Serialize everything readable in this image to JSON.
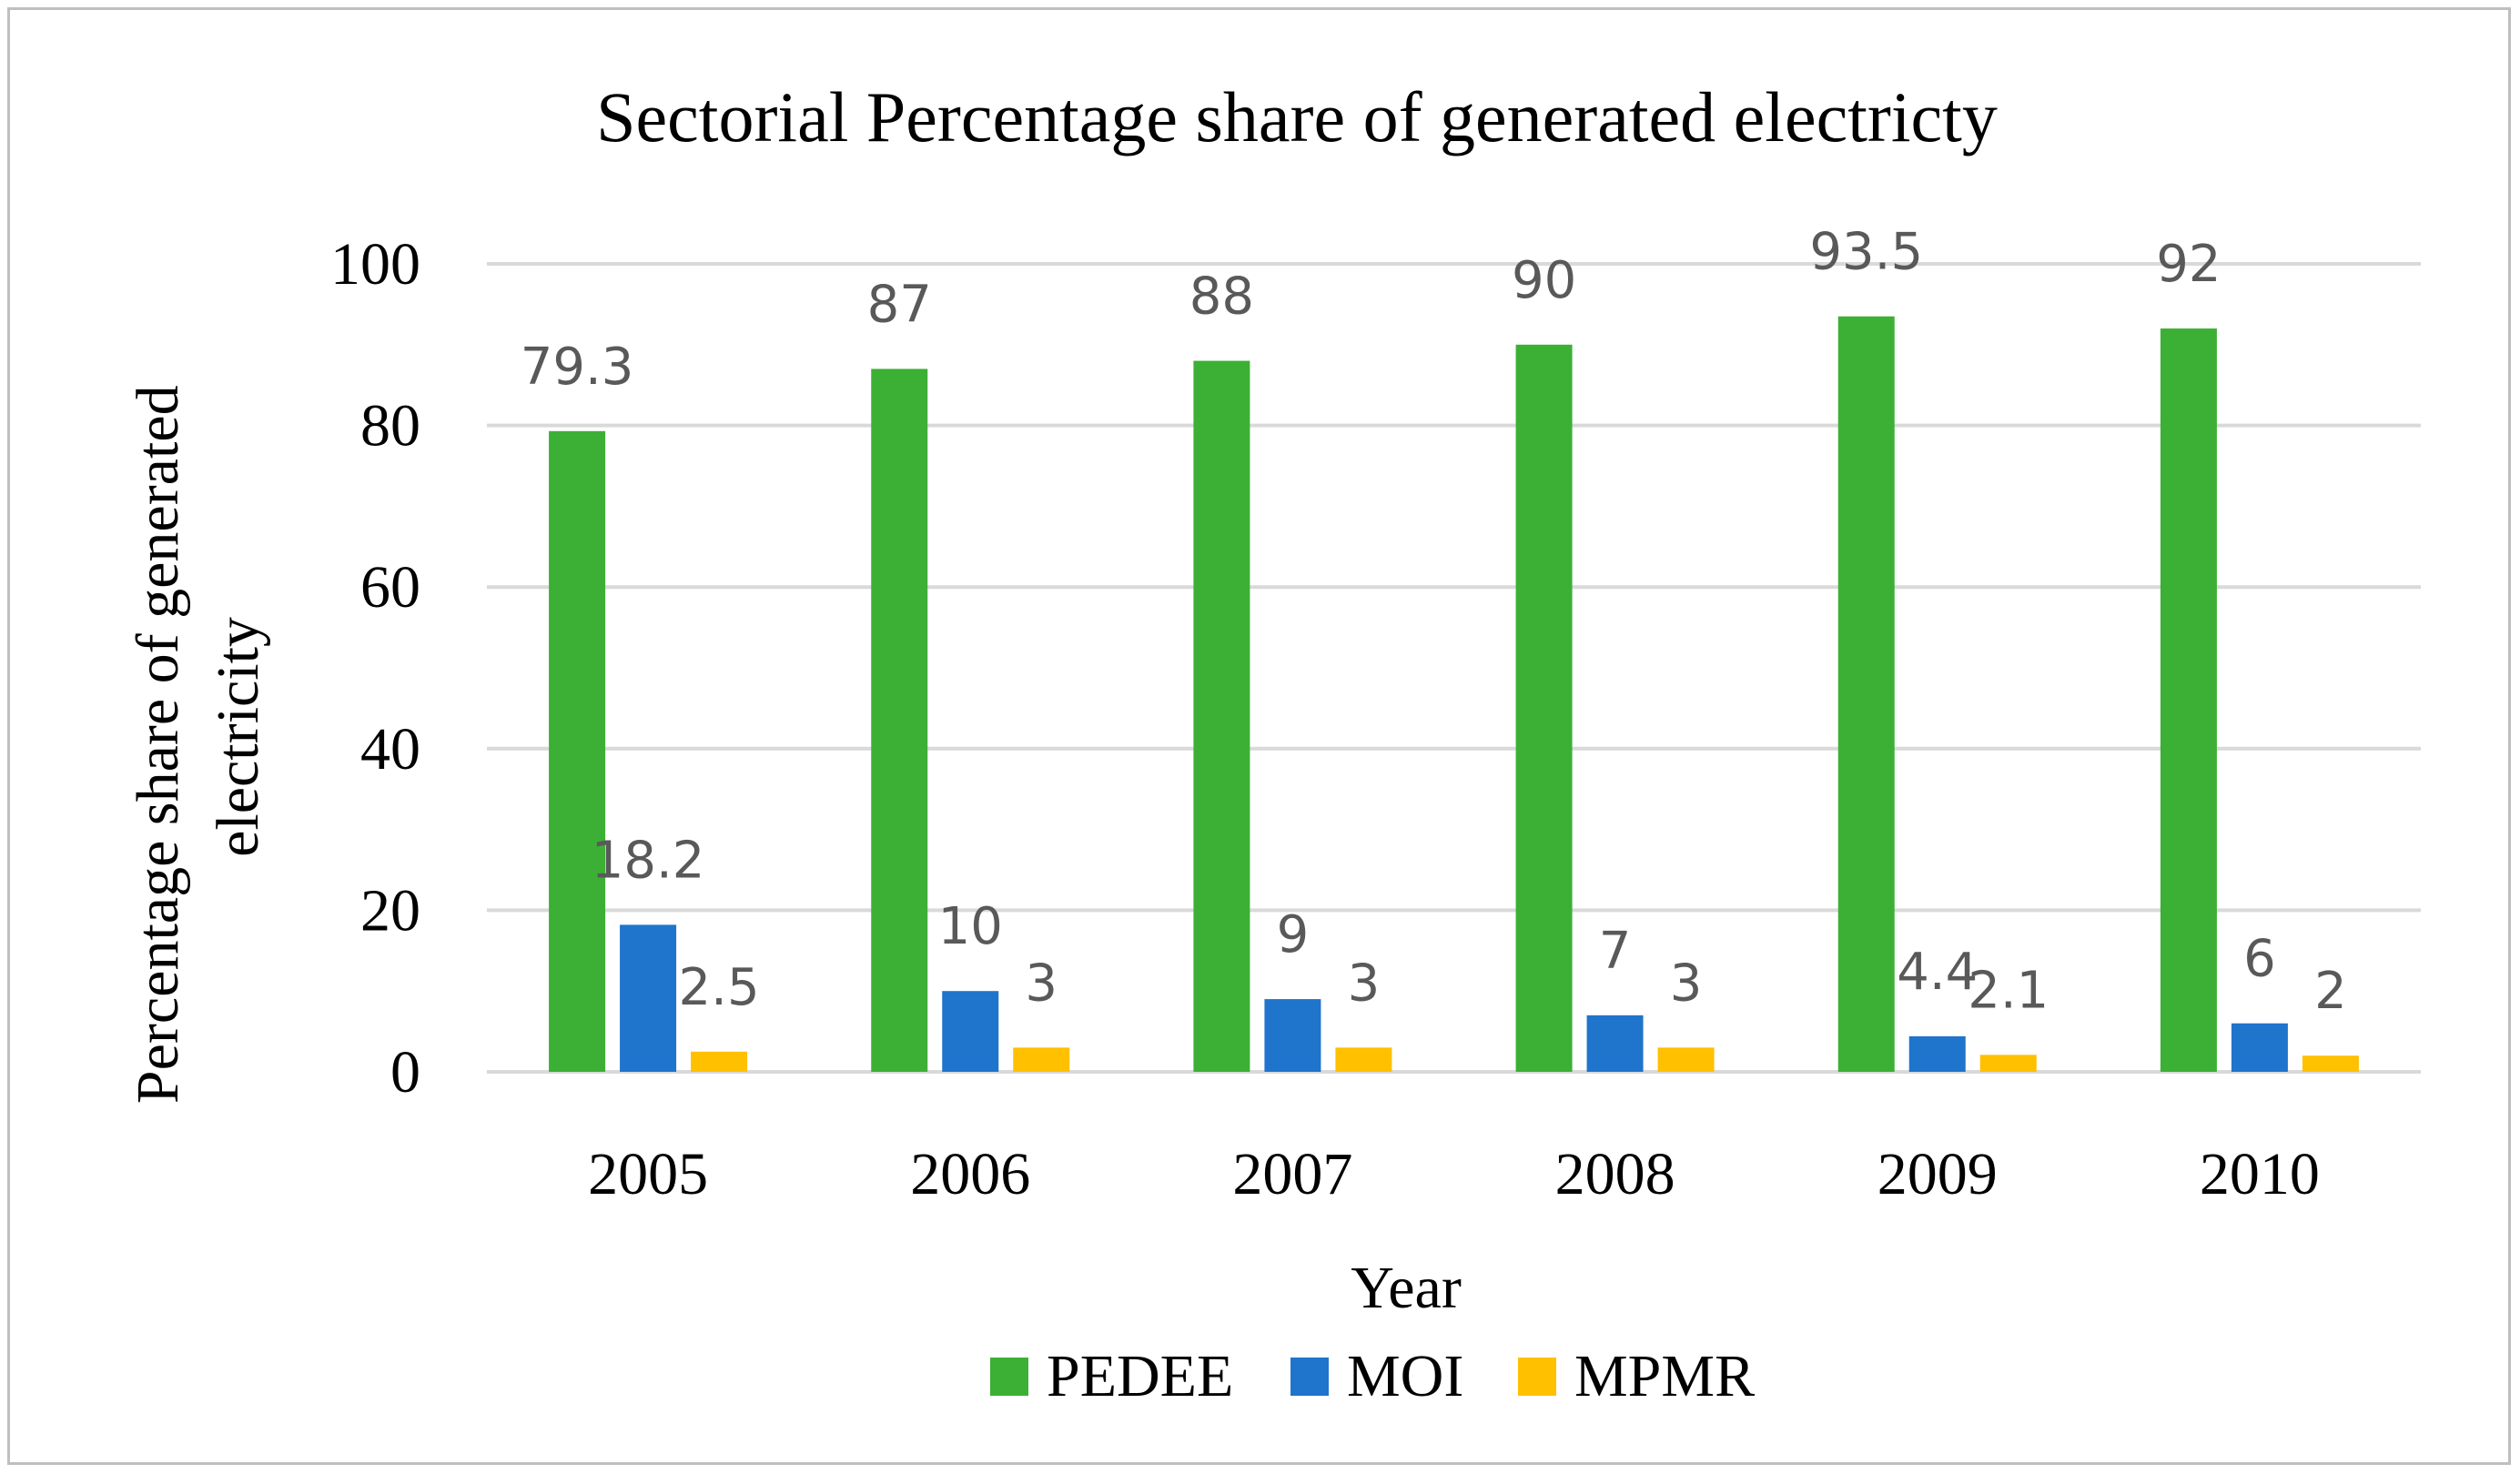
{
  "chart_data": {
    "type": "bar",
    "title": "Sectorial Percentage share of generated electricty",
    "xlabel": "Year",
    "ylabel": [
      "Percentage share of generated",
      "electricity"
    ],
    "ylim": [
      0,
      100
    ],
    "yticks": [
      "0",
      "20",
      "40",
      "60",
      "80",
      "100"
    ],
    "grid": true,
    "legend_position": "bottom",
    "categories": [
      "2005",
      "2006",
      "2007",
      "2008",
      "2009",
      "2010"
    ],
    "series": [
      {
        "name": "PEDEE",
        "color": "#3cb034",
        "values": [
          79.3,
          87,
          88,
          90,
          93.5,
          92
        ],
        "labels": [
          "79.3",
          "87",
          "88",
          "90",
          "93.5",
          "92"
        ]
      },
      {
        "name": "MOI",
        "color": "#1f74cc",
        "values": [
          18.2,
          10,
          9,
          7,
          4.4,
          6
        ],
        "labels": [
          "18.2",
          "10",
          "9",
          "7",
          "4.4",
          "6"
        ]
      },
      {
        "name": "MPMR",
        "color": "#ffc000",
        "values": [
          2.5,
          3,
          3,
          3,
          2.1,
          2
        ],
        "labels": [
          "2.5",
          "3",
          "3",
          "3",
          "2.1",
          "2"
        ]
      }
    ]
  }
}
